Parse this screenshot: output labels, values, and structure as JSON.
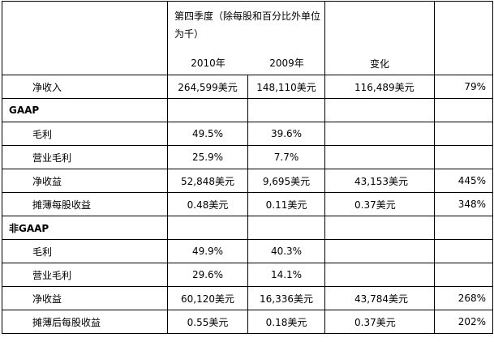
{
  "header": {
    "period_title": "第四季度（除每股和百分比外单位为千）",
    "year_2010": "2010年",
    "year_2009": "2009年",
    "change": "变化"
  },
  "rows": [
    {
      "label": "净收入",
      "v2010": "264,599美元",
      "v2009": "148,110美元",
      "change": "116,489美元",
      "pct": "79%"
    },
    {
      "section": "GAAP"
    },
    {
      "label": "毛利",
      "v2010": "49.5%",
      "v2009": "39.6%",
      "change": "",
      "pct": ""
    },
    {
      "label": "营业毛利",
      "v2010": "25.9%",
      "v2009": "7.7%",
      "change": "",
      "pct": ""
    },
    {
      "label": "净收益",
      "v2010": "52,848美元",
      "v2009": "9,695美元",
      "change": "43,153美元",
      "pct": "445%"
    },
    {
      "label": "摊薄每股收益",
      "v2010": "0.48美元",
      "v2009": "0.11美元",
      "change": "0.37美元",
      "pct": "348%"
    },
    {
      "section": "非GAAP"
    },
    {
      "label": "毛利",
      "v2010": "49.9%",
      "v2009": "40.3%",
      "change": "",
      "pct": ""
    },
    {
      "label": "营业毛利",
      "v2010": "29.6%",
      "v2009": "14.1%",
      "change": "",
      "pct": ""
    },
    {
      "label": "净收益",
      "v2010": "60,120美元",
      "v2009": "16,336美元",
      "change": "43,784美元",
      "pct": "268%"
    },
    {
      "label": "摊薄后每股收益",
      "v2010": "0.55美元",
      "v2009": "0.18美元",
      "change": "0.37美元",
      "pct": "202%"
    }
  ]
}
